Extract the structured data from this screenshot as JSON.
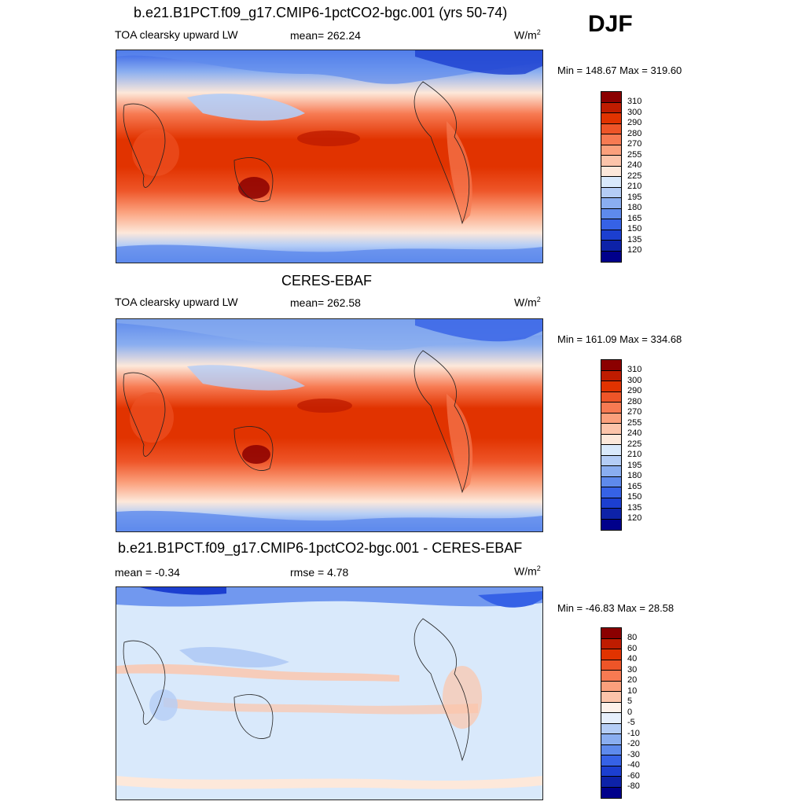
{
  "season": "DJF",
  "panels": [
    {
      "title": "b.e21.B1PCT.f09_g17.CMIP6-1pctCO2-bgc.001 (yrs 50-74)",
      "left_label": "TOA clearsky upward LW",
      "center_label": "mean= 262.24",
      "units": "W/m",
      "units_sup": "2",
      "minmax": "Min = 148.67 Max = 319.60",
      "cbar_labels": [
        "310",
        "300",
        "290",
        "280",
        "270",
        "255",
        "240",
        "225",
        "210",
        "195",
        "180",
        "165",
        "150",
        "135",
        "120"
      ]
    },
    {
      "title": "CERES-EBAF",
      "left_label": "TOA clearsky upward LW",
      "center_label": "mean= 262.58",
      "units": "W/m",
      "units_sup": "2",
      "minmax": "Min = 161.09 Max = 334.68",
      "cbar_labels": [
        "310",
        "300",
        "290",
        "280",
        "270",
        "255",
        "240",
        "225",
        "210",
        "195",
        "180",
        "165",
        "150",
        "135",
        "120"
      ]
    },
    {
      "title": "b.e21.B1PCT.f09_g17.CMIP6-1pctCO2-bgc.001 - CERES-EBAF",
      "left_label": "mean =  -0.34",
      "center_label": "rmse =   4.78",
      "units": "W/m",
      "units_sup": "2",
      "minmax": "Min = -46.83 Max =  28.58",
      "cbar_labels": [
        "80",
        "60",
        "40",
        "30",
        "20",
        "10",
        "5",
        "0",
        "-5",
        "-10",
        "-20",
        "-30",
        "-40",
        "-60",
        "-80"
      ]
    }
  ],
  "colors": {
    "cbar": [
      "#8b0000",
      "#bf1c00",
      "#e13300",
      "#ee5528",
      "#f77a52",
      "#fba07c",
      "#fcc4aa",
      "#fde8da",
      "#d9e9fb",
      "#b4cdf6",
      "#8aaef0",
      "#5e8aec",
      "#3662e6",
      "#1c3fd0",
      "#0d22a8",
      "#00008b"
    ]
  }
}
